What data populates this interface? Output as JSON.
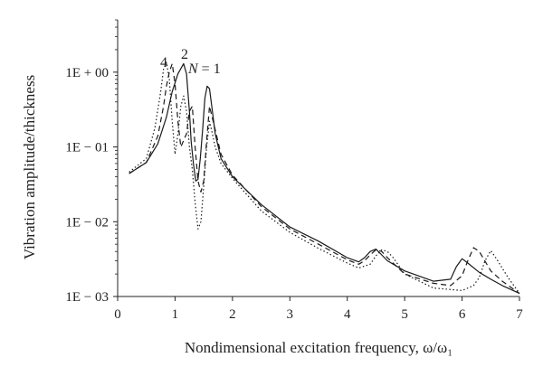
{
  "chart_data": {
    "type": "line",
    "title": "",
    "xlabel": "Nondimensional excitation frequency, ω/ω₁",
    "ylabel": "Vibration amplitude/thickness",
    "xlim": [
      0,
      7
    ],
    "ylim": [
      0.001,
      5
    ],
    "yscale": "log",
    "grid": false,
    "x_ticks": [
      "0",
      "1",
      "2",
      "3",
      "4",
      "5",
      "6",
      "7"
    ],
    "y_ticks": [
      {
        "value": 1,
        "label": "1E + 00"
      },
      {
        "value": 0.1,
        "label": "1E − 01"
      },
      {
        "value": 0.01,
        "label": "1E − 02"
      },
      {
        "value": 0.001,
        "label": "1E − 03"
      }
    ],
    "series_labels": [
      "4",
      "2",
      "N = 1"
    ],
    "series": [
      {
        "name": "N = 1",
        "style": "solid",
        "x": [
          0.2,
          0.5,
          0.7,
          0.85,
          0.95,
          1.05,
          1.15,
          1.2,
          1.25,
          1.28,
          1.32,
          1.36,
          1.4,
          1.44,
          1.48,
          1.52,
          1.56,
          1.6,
          1.65,
          1.7,
          1.8,
          2.0,
          2.5,
          3.0,
          3.5,
          4.0,
          4.2,
          4.3,
          4.4,
          4.5,
          4.6,
          4.7,
          5.0,
          5.5,
          5.8,
          5.9,
          6.0,
          6.1,
          6.3,
          6.5,
          6.7,
          7.0
        ],
        "y": [
          0.044,
          0.062,
          0.11,
          0.25,
          0.55,
          0.95,
          1.3,
          0.95,
          0.3,
          0.12,
          0.06,
          0.035,
          0.037,
          0.07,
          0.17,
          0.45,
          0.65,
          0.6,
          0.3,
          0.15,
          0.07,
          0.04,
          0.017,
          0.0085,
          0.0055,
          0.0033,
          0.0029,
          0.0033,
          0.004,
          0.0043,
          0.0036,
          0.003,
          0.0022,
          0.0016,
          0.0017,
          0.0025,
          0.0032,
          0.0028,
          0.0021,
          0.0017,
          0.0014,
          0.0011
        ]
      },
      {
        "name": "2",
        "style": "dashed",
        "x": [
          0.2,
          0.5,
          0.7,
          0.8,
          0.85,
          0.9,
          0.95,
          1.0,
          1.05,
          1.1,
          1.2,
          1.25,
          1.3,
          1.35,
          1.4,
          1.45,
          1.5,
          1.55,
          1.6,
          1.7,
          1.8,
          2.0,
          2.5,
          3.0,
          3.5,
          4.0,
          4.2,
          4.3,
          4.4,
          4.5,
          4.6,
          4.7,
          5.0,
          5.5,
          5.8,
          6.0,
          6.1,
          6.2,
          6.3,
          6.5,
          6.7,
          7.0
        ],
        "y": [
          0.044,
          0.062,
          0.14,
          0.35,
          0.65,
          1.0,
          1.3,
          0.7,
          0.22,
          0.1,
          0.15,
          0.3,
          0.35,
          0.1,
          0.035,
          0.025,
          0.035,
          0.12,
          0.35,
          0.17,
          0.08,
          0.042,
          0.016,
          0.008,
          0.005,
          0.0031,
          0.0027,
          0.003,
          0.0036,
          0.0042,
          0.004,
          0.0033,
          0.002,
          0.0015,
          0.0014,
          0.0019,
          0.003,
          0.0045,
          0.004,
          0.0022,
          0.0016,
          0.0011
        ]
      },
      {
        "name": "4",
        "style": "dotted",
        "x": [
          0.2,
          0.5,
          0.65,
          0.75,
          0.8,
          0.85,
          0.9,
          0.95,
          1.0,
          1.05,
          1.1,
          1.15,
          1.2,
          1.25,
          1.3,
          1.35,
          1.4,
          1.45,
          1.5,
          1.55,
          1.6,
          1.65,
          1.7,
          1.8,
          2.0,
          2.5,
          3.0,
          3.5,
          4.0,
          4.2,
          4.4,
          4.5,
          4.6,
          4.7,
          4.8,
          5.0,
          5.5,
          6.0,
          6.2,
          6.3,
          6.4,
          6.5,
          6.6,
          6.8,
          7.0
        ],
        "y": [
          0.046,
          0.07,
          0.18,
          0.55,
          1.1,
          1.35,
          0.8,
          0.22,
          0.08,
          0.15,
          0.35,
          0.48,
          0.3,
          0.1,
          0.05,
          0.018,
          0.008,
          0.01,
          0.03,
          0.1,
          0.22,
          0.15,
          0.1,
          0.06,
          0.038,
          0.014,
          0.0072,
          0.0044,
          0.0028,
          0.0024,
          0.0027,
          0.0035,
          0.0042,
          0.004,
          0.0033,
          0.002,
          0.0013,
          0.0012,
          0.0014,
          0.0018,
          0.003,
          0.0041,
          0.0032,
          0.0018,
          0.0011
        ]
      }
    ]
  }
}
